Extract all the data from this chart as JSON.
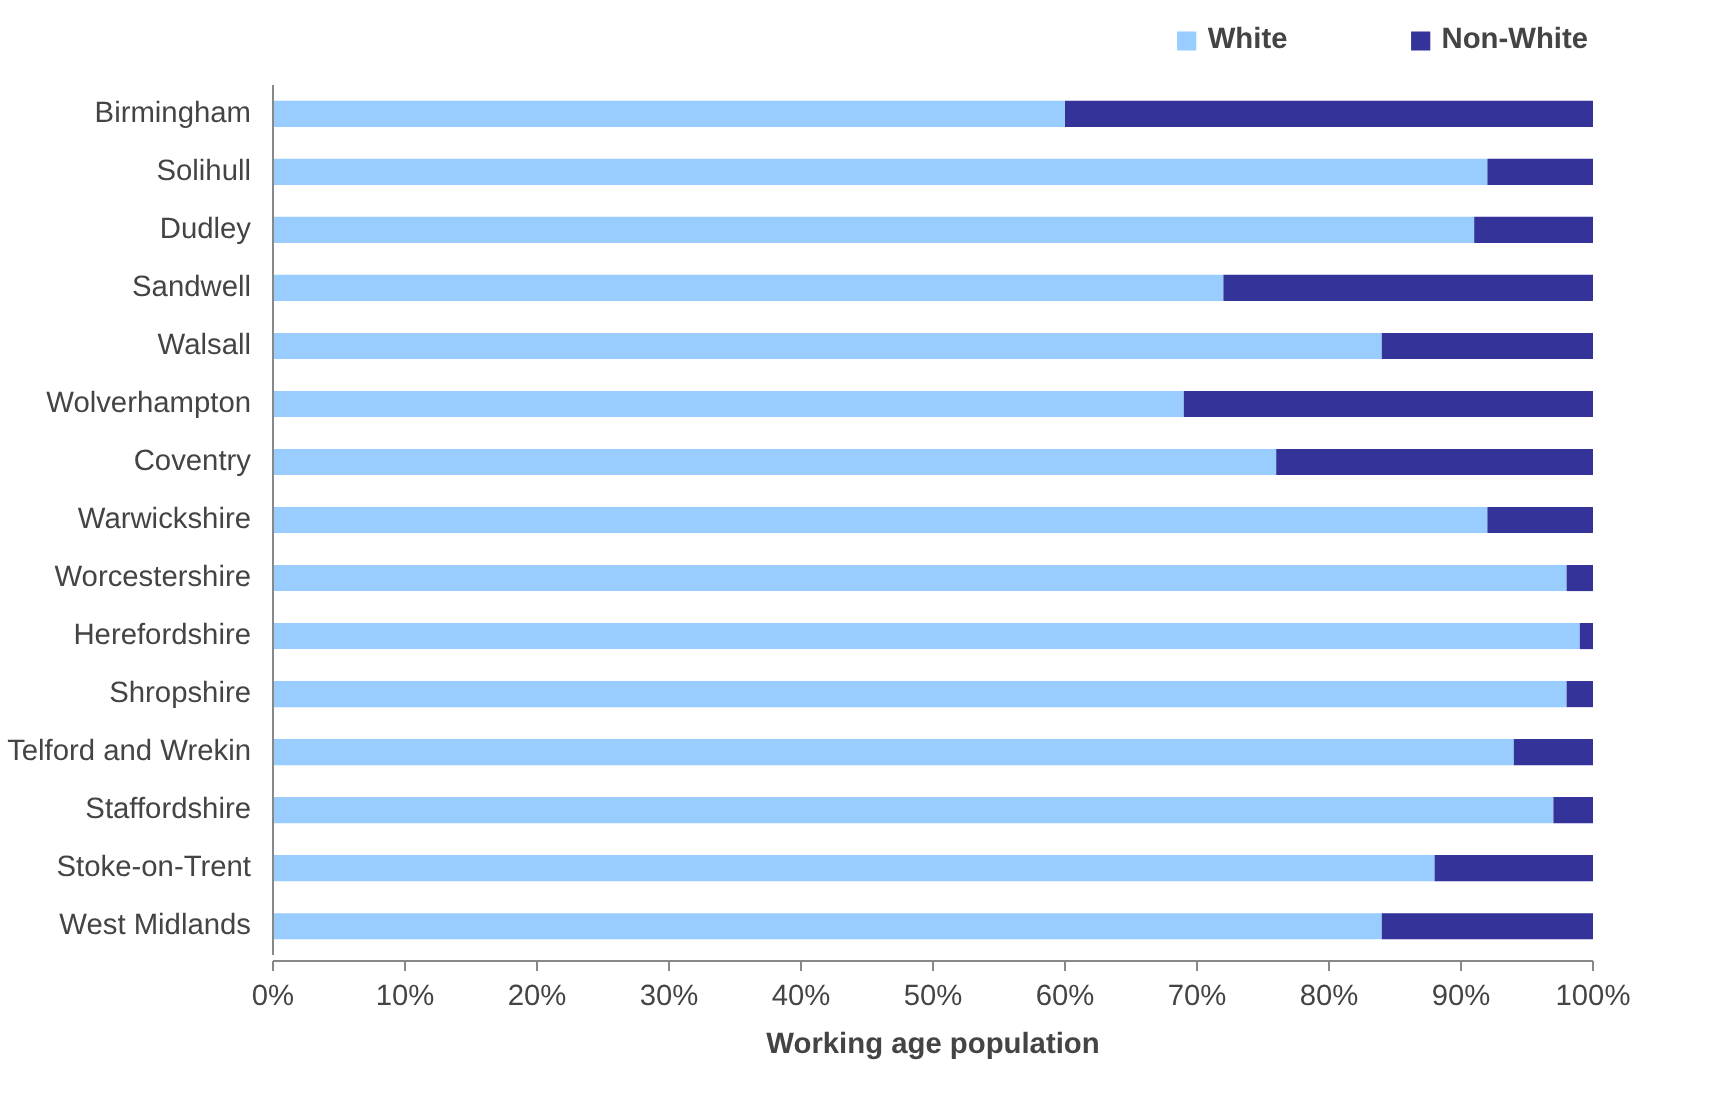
{
  "chart_data": {
    "type": "bar",
    "orientation": "horizontal",
    "stacked": true,
    "xlabel": "Working age population",
    "categories": [
      "Birmingham",
      "Solihull",
      "Dudley",
      "Sandwell",
      "Walsall",
      "Wolverhampton",
      "Coventry",
      "Warwickshire",
      "Worcestershire",
      "Herefordshire",
      "Shropshire",
      "Telford and Wrekin",
      "Staffordshire",
      "Stoke-on-Trent",
      "West Midlands"
    ],
    "series": [
      {
        "name": "White",
        "color": "#99ccff",
        "values": [
          60,
          92,
          91,
          72,
          84,
          69,
          76,
          92,
          98,
          99,
          98,
          94,
          97,
          88,
          84
        ]
      },
      {
        "name": "Non-White",
        "color": "#333399",
        "values": [
          40,
          8,
          9,
          28,
          16,
          31,
          24,
          8,
          2,
          1,
          2,
          6,
          3,
          12,
          16
        ]
      }
    ],
    "xlim": [
      0,
      100
    ],
    "xticks": [
      {
        "value": 0,
        "label": "0%"
      },
      {
        "value": 10,
        "label": "10%"
      },
      {
        "value": 20,
        "label": "20%"
      },
      {
        "value": 30,
        "label": "30%"
      },
      {
        "value": 40,
        "label": "40%"
      },
      {
        "value": 50,
        "label": "50%"
      },
      {
        "value": 60,
        "label": "60%"
      },
      {
        "value": 70,
        "label": "70%"
      },
      {
        "value": 80,
        "label": "80%"
      },
      {
        "value": 90,
        "label": "90%"
      },
      {
        "value": 100,
        "label": "100%"
      }
    ],
    "grid": false,
    "legend": "top"
  }
}
